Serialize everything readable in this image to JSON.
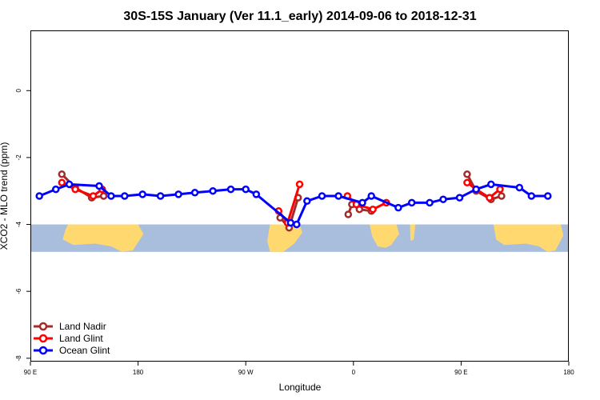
{
  "chart_data": {
    "type": "line",
    "title": "30S-15S January (Ver 11.1_early)   2014-09-06 to 2018-12-31",
    "xlabel": "Longitude",
    "ylabel": "XCO2 - MLO trend (ppm)",
    "xlim": [
      90,
      450
    ],
    "ylim": [
      -8.1,
      1.8
    ],
    "x_ticks": [
      {
        "value": 90,
        "label": "90 E"
      },
      {
        "value": 162,
        "label": "180"
      },
      {
        "value": 234,
        "label": "90 W"
      },
      {
        "value": 306,
        "label": "0"
      },
      {
        "value": 378,
        "label": "90 E"
      },
      {
        "value": 450,
        "label": "180"
      }
    ],
    "y_ticks": [
      {
        "value": 0,
        "label": "0"
      },
      {
        "value": -2,
        "label": "-2"
      },
      {
        "value": -4,
        "label": "-4"
      },
      {
        "value": -6,
        "label": "-6"
      },
      {
        "value": -8,
        "label": "-8"
      }
    ],
    "grid": false,
    "legend_position": "bottom-left",
    "map_strip": {
      "y_range": [
        -4.82,
        -4.0
      ],
      "ocean_color": "#a8bedc",
      "land_color": "#ffd970"
    },
    "series": [
      {
        "name": "Land Nadir",
        "color": "#a52a2a",
        "segments": [
          [
            [
              111,
              -2.5
            ],
            [
              120,
              -2.9
            ],
            [
              131,
              -3.2
            ],
            [
              139,
              -3.15
            ]
          ],
          [
            [
              257,
              -3.8
            ],
            [
              263,
              -4.1
            ],
            [
              269,
              -3.2
            ]
          ],
          [
            [
              302.5,
              -3.7
            ],
            [
              305,
              -3.4
            ],
            [
              310,
              -3.55
            ],
            [
              318,
              -3.6
            ]
          ],
          [
            [
              382,
              -2.5
            ],
            [
              388,
              -3.0
            ],
            [
              398,
              -3.25
            ],
            [
              405,
              -3.15
            ]
          ]
        ]
      },
      {
        "name": "Land Glint",
        "color": "#ff0000",
        "segments": [
          [
            [
              111,
              -2.75
            ],
            [
              120,
              -2.95
            ],
            [
              132,
              -3.15
            ],
            [
              138,
              -2.95
            ]
          ],
          [
            [
              256,
              -3.6
            ],
            [
              262,
              -3.95
            ],
            [
              270,
              -2.8
            ]
          ],
          [
            [
              302,
              -3.15
            ],
            [
              308,
              -3.4
            ],
            [
              319,
              -3.55
            ],
            [
              328,
              -3.35
            ]
          ],
          [
            [
              382,
              -2.75
            ],
            [
              388,
              -2.95
            ],
            [
              397,
              -3.2
            ],
            [
              404,
              -2.95
            ]
          ]
        ]
      },
      {
        "name": "Ocean Glint",
        "color": "#0000ff",
        "segments": [
          [
            [
              96,
              -3.15
            ],
            [
              107,
              -2.95
            ],
            [
              116,
              -2.8
            ],
            [
              136,
              -2.85
            ],
            [
              144,
              -3.15
            ],
            [
              153,
              -3.15
            ],
            [
              165,
              -3.1
            ],
            [
              177,
              -3.15
            ],
            [
              189,
              -3.1
            ],
            [
              200,
              -3.05
            ],
            [
              212,
              -3.0
            ],
            [
              224,
              -2.95
            ],
            [
              234,
              -2.95
            ],
            [
              241,
              -3.1
            ],
            [
              264,
              -3.95
            ],
            [
              268,
              -4.0
            ],
            [
              275,
              -3.3
            ],
            [
              285,
              -3.15
            ],
            [
              296,
              -3.15
            ],
            [
              312,
              -3.35
            ],
            [
              318,
              -3.15
            ],
            [
              336,
              -3.5
            ],
            [
              345,
              -3.35
            ],
            [
              357,
              -3.35
            ],
            [
              366,
              -3.25
            ],
            [
              377,
              -3.2
            ],
            [
              388,
              -2.95
            ],
            [
              398,
              -2.8
            ],
            [
              417,
              -2.9
            ],
            [
              425,
              -3.15
            ],
            [
              436,
              -3.15
            ]
          ]
        ]
      }
    ]
  }
}
